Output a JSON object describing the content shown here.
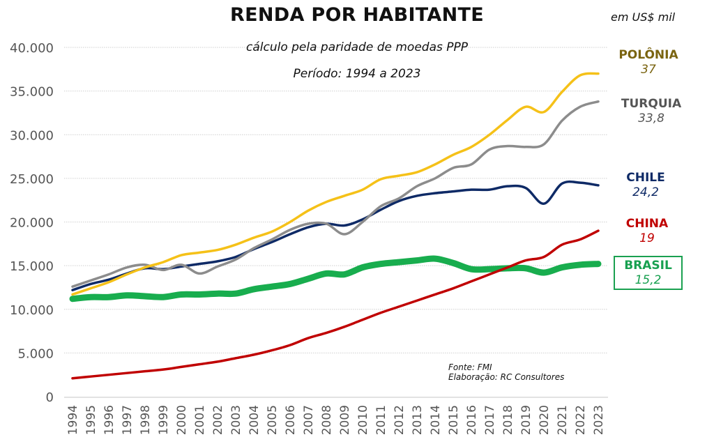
{
  "header": {
    "title": "RENDA POR HABITANTE",
    "subtitle": "cálculo pela paridade de moedas PPP",
    "period": "Período: 1994 a 2023",
    "unit": "em US$ mil"
  },
  "source": {
    "line1": "Fonte: FMI",
    "line2": "Elaboração: RC Consultores"
  },
  "legend": [
    {
      "name": "POLÔNIA",
      "value": "37",
      "color": "#7a6410"
    },
    {
      "name": "TURQUIA",
      "value": "33,8",
      "color": "#555555"
    },
    {
      "name": "CHILE",
      "value": "24,2",
      "color": "#0e2a66"
    },
    {
      "name": "CHINA",
      "value": "19",
      "color": "#c00000"
    },
    {
      "name": "BRASIL",
      "value": "15,2",
      "color": "#18a050",
      "boxed": true
    }
  ],
  "chart_data": {
    "type": "line",
    "title": "RENDA POR HABITANTE",
    "subtitle": "cálculo pela paridade de moedas PPP — Período: 1994 a 2023",
    "xlabel": "",
    "ylabel": "em US$ mil",
    "ylim": [
      0,
      40000
    ],
    "yticks": [
      0,
      5000,
      10000,
      15000,
      20000,
      25000,
      30000,
      35000,
      40000
    ],
    "ytick_labels": [
      "0",
      "5.000",
      "10.000",
      "15.000",
      "20.000",
      "25.000",
      "30.000",
      "35.000",
      "40.000"
    ],
    "grid": true,
    "legend_placement": "right (end labels)",
    "x": [
      "1994",
      "1995",
      "1996",
      "1997",
      "1998",
      "1999",
      "2000",
      "2001",
      "2002",
      "2003",
      "2004",
      "2005",
      "2006",
      "2007",
      "2008",
      "2009",
      "2010",
      "2011",
      "2012",
      "2013",
      "2014",
      "2015",
      "2016",
      "2017",
      "2018",
      "2019",
      "2020",
      "2021",
      "2022",
      "2023"
    ],
    "series": [
      {
        "name": "Polônia",
        "color": "#f5c118",
        "width": 3.5,
        "values": [
          11700,
          12400,
          13100,
          14000,
          14800,
          15400,
          16200,
          16500,
          16800,
          17400,
          18200,
          18900,
          20000,
          21300,
          22300,
          23000,
          23700,
          24900,
          25300,
          25700,
          26600,
          27700,
          28600,
          30000,
          31700,
          33200,
          32600,
          34900,
          36800,
          37000
        ]
      },
      {
        "name": "Turquia",
        "color": "#8c8c8c",
        "width": 3.5,
        "values": [
          12600,
          13300,
          14000,
          14800,
          15100,
          14500,
          15100,
          14100,
          14900,
          15700,
          17000,
          18000,
          19100,
          19800,
          19800,
          18600,
          20000,
          21800,
          22700,
          24100,
          25000,
          26200,
          26600,
          28300,
          28700,
          28600,
          28900,
          31600,
          33200,
          33800
        ]
      },
      {
        "name": "Chile",
        "color": "#0e2a66",
        "width": 3.5,
        "values": [
          12200,
          12900,
          13400,
          14100,
          14700,
          14600,
          14900,
          15200,
          15500,
          16000,
          16900,
          17700,
          18600,
          19400,
          19800,
          19600,
          20300,
          21400,
          22400,
          23000,
          23300,
          23500,
          23700,
          23700,
          24100,
          23900,
          22100,
          24400,
          24500,
          24200
        ]
      },
      {
        "name": "China",
        "color": "#c00000",
        "width": 3.5,
        "values": [
          2100,
          2300,
          2500,
          2700,
          2900,
          3100,
          3400,
          3700,
          4000,
          4400,
          4800,
          5300,
          5900,
          6700,
          7300,
          8000,
          8800,
          9600,
          10300,
          11000,
          11700,
          12400,
          13200,
          14000,
          14800,
          15600,
          16000,
          17400,
          18000,
          19000
        ]
      },
      {
        "name": "Brasil",
        "color": "#18ad4e",
        "width": 9,
        "values": [
          11200,
          11400,
          11400,
          11600,
          11500,
          11400,
          11700,
          11700,
          11800,
          11800,
          12300,
          12600,
          12900,
          13500,
          14100,
          14000,
          14800,
          15200,
          15400,
          15600,
          15800,
          15300,
          14600,
          14600,
          14700,
          14700,
          14200,
          14800,
          15100,
          15200
        ]
      }
    ]
  }
}
